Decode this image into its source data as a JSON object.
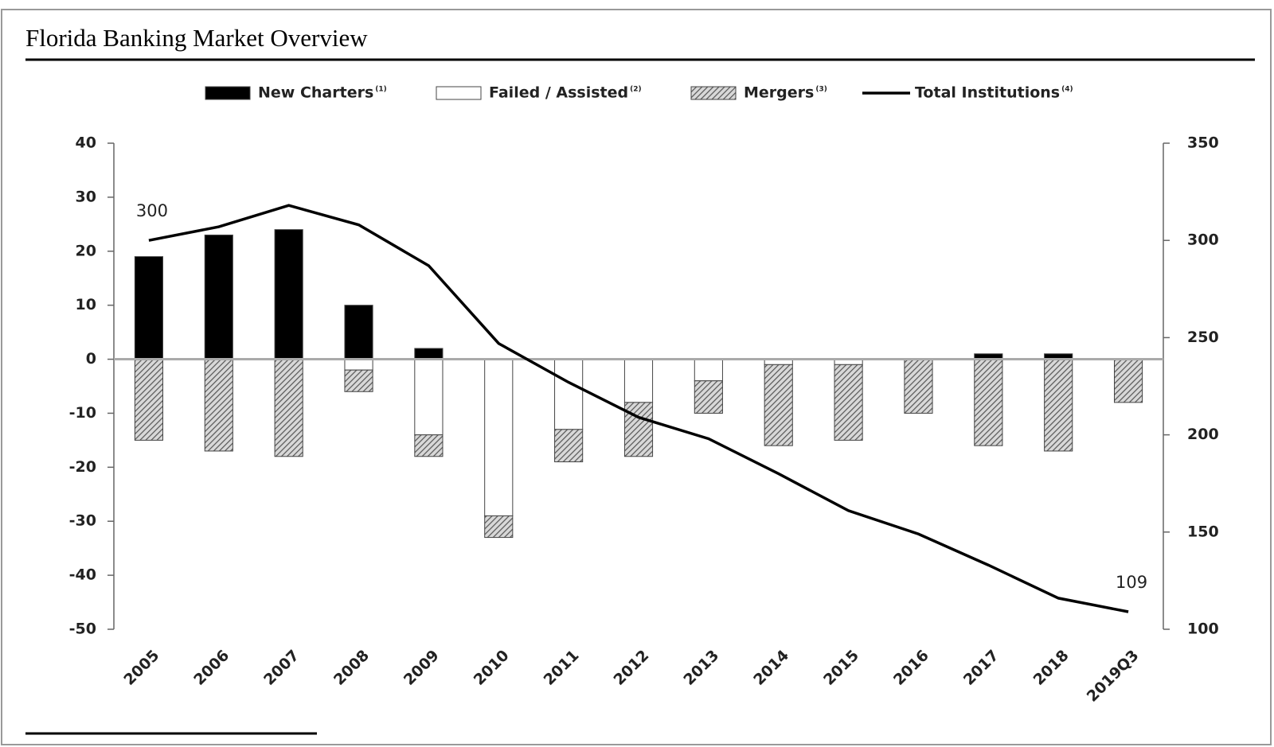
{
  "chart_data": {
    "type": "bar-line",
    "title": "Florida Banking Market Overview",
    "categories": [
      "2005",
      "2006",
      "2007",
      "2008",
      "2009",
      "2010",
      "2011",
      "2012",
      "2013",
      "2014",
      "2015",
      "2016",
      "2017",
      "2018",
      "2019Q3"
    ],
    "series": [
      {
        "name": "New Charters",
        "note": "(1)",
        "color": "#000000",
        "kind": "bar",
        "values": [
          19,
          23,
          24,
          10,
          2,
          0,
          0,
          0,
          0,
          0,
          0,
          0,
          1,
          1,
          0
        ]
      },
      {
        "name": "Failed / Assisted",
        "note": "(2)",
        "color": "#ffffff",
        "kind": "bar",
        "values": [
          0,
          0,
          0,
          -2,
          -14,
          -29,
          -13,
          -8,
          -4,
          -1,
          -1,
          0,
          0,
          0,
          0
        ]
      },
      {
        "name": "Mergers",
        "note": "(3)",
        "color": "#707070",
        "kind": "hatch",
        "values": [
          -15,
          -17,
          -18,
          -4,
          -4,
          -4,
          -6,
          -10,
          -6,
          -15,
          -14,
          -10,
          -16,
          -17,
          -8
        ]
      },
      {
        "name": "Total Institutions",
        "note": "(4)",
        "color": "#000000",
        "kind": "line",
        "axis": "y2",
        "values": [
          300,
          307,
          318,
          308,
          287,
          247,
          227,
          209,
          198,
          180,
          161,
          149,
          133,
          116,
          109
        ],
        "value_labels": [
          "300",
          null,
          null,
          null,
          null,
          null,
          null,
          null,
          null,
          null,
          null,
          null,
          null,
          null,
          "109"
        ]
      }
    ],
    "ylim": [
      -50,
      40
    ],
    "yticks": [
      -50,
      -40,
      -30,
      -20,
      -10,
      0,
      10,
      20,
      30,
      40
    ],
    "y2lim": [
      100,
      350
    ],
    "y2ticks": [
      100,
      150,
      200,
      250,
      300,
      350
    ],
    "legend": "top"
  }
}
